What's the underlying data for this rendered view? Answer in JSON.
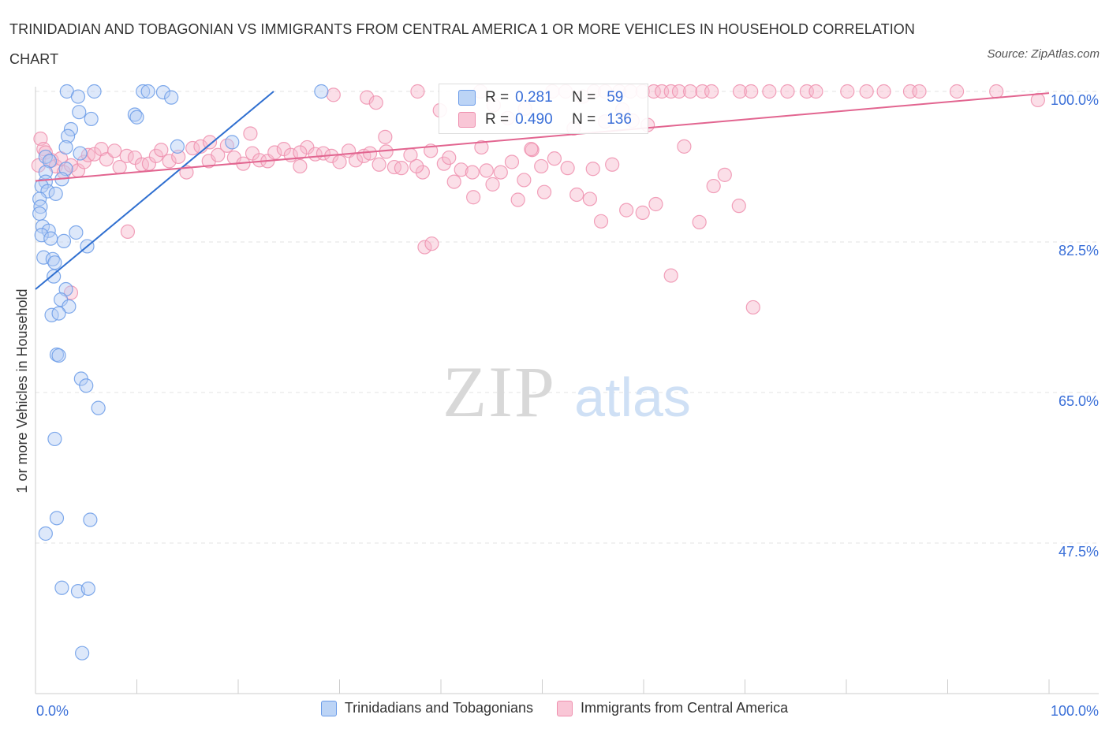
{
  "title": "TRINIDADIAN AND TOBAGONIAN VS IMMIGRANTS FROM CENTRAL AMERICA 1 OR MORE VEHICLES IN HOUSEHOLD CORRELATION CHART",
  "source": "Source: ZipAtlas.com",
  "watermark": {
    "zip": "ZIP",
    "atlas": "atlas"
  },
  "stats": [
    {
      "r_label": "R =",
      "r": "0.281",
      "n_label": "N =",
      "n": "59",
      "color": "#6a9be8"
    },
    {
      "r_label": "R =",
      "r": "0.490",
      "n_label": "N =",
      "n": "136",
      "color": "#ef8fae"
    }
  ],
  "legend": [
    {
      "label": "Trinidadians and Tobagonians",
      "color": "#6a9be8"
    },
    {
      "label": "Immigrants from Central America",
      "color": "#ef8fae"
    }
  ],
  "colors": {
    "blue": "#6a9be8",
    "blue_line": "#2f6fd0",
    "pink": "#ef8fae",
    "pink_line": "#e26590",
    "axis_label": "#3a6fd8"
  },
  "chart_data": {
    "type": "scatter",
    "xlabel": "",
    "ylabel": "1 or more Vehicles in Household",
    "xlim": [
      0,
      100
    ],
    "ylim": [
      30,
      100
    ],
    "x_tick_labels": [
      "0.0%",
      "100.0%"
    ],
    "y_ticks": [
      47.5,
      65.0,
      82.5,
      100.0
    ],
    "y_tick_labels": [
      "47.5%",
      "65.0%",
      "82.5%",
      "100.0%"
    ],
    "grid": true,
    "series": [
      {
        "name": "Trinidadians and Tobagonians",
        "color": "#6a9be8",
        "trend": {
          "x": [
            0.0,
            23.5
          ],
          "y": [
            77.0,
            100.0
          ]
        },
        "points": [
          [
            3.1,
            100
          ],
          [
            5.8,
            100
          ],
          [
            10.6,
            100
          ],
          [
            11.1,
            100
          ],
          [
            12.6,
            99.9
          ],
          [
            28.2,
            100
          ],
          [
            4.2,
            99.4
          ],
          [
            13.4,
            99.3
          ],
          [
            4.3,
            97.6
          ],
          [
            9.8,
            97.3
          ],
          [
            10.0,
            97.0
          ],
          [
            5.5,
            96.8
          ],
          [
            3.5,
            95.6
          ],
          [
            3.2,
            94.8
          ],
          [
            3.0,
            93.5
          ],
          [
            4.4,
            92.8
          ],
          [
            14.0,
            93.6
          ],
          [
            19.4,
            94.1
          ],
          [
            1.0,
            92.4
          ],
          [
            1.4,
            91.9
          ],
          [
            3.0,
            91.0
          ],
          [
            1.0,
            90.6
          ],
          [
            2.6,
            89.8
          ],
          [
            1.0,
            89.5
          ],
          [
            0.6,
            89.0
          ],
          [
            1.2,
            88.4
          ],
          [
            2.0,
            88.1
          ],
          [
            0.4,
            87.5
          ],
          [
            0.5,
            86.6
          ],
          [
            0.4,
            85.8
          ],
          [
            0.7,
            84.3
          ],
          [
            1.3,
            83.8
          ],
          [
            0.6,
            83.3
          ],
          [
            4.0,
            83.6
          ],
          [
            1.5,
            82.9
          ],
          [
            2.8,
            82.6
          ],
          [
            5.1,
            82.0
          ],
          [
            0.8,
            80.7
          ],
          [
            1.7,
            80.5
          ],
          [
            1.9,
            80.1
          ],
          [
            1.8,
            78.5
          ],
          [
            3.0,
            77.0
          ],
          [
            2.5,
            75.8
          ],
          [
            3.3,
            75.0
          ],
          [
            1.6,
            74.0
          ],
          [
            2.3,
            74.2
          ],
          [
            2.1,
            69.4
          ],
          [
            2.3,
            69.3
          ],
          [
            4.5,
            66.6
          ],
          [
            5.0,
            65.8
          ],
          [
            6.2,
            63.2
          ],
          [
            1.9,
            59.6
          ],
          [
            2.1,
            50.4
          ],
          [
            5.4,
            50.2
          ],
          [
            1.0,
            48.6
          ],
          [
            2.6,
            42.3
          ],
          [
            4.2,
            41.9
          ],
          [
            5.2,
            42.2
          ],
          [
            4.6,
            34.7
          ]
        ]
      },
      {
        "name": "Immigrants from Central America",
        "color": "#ef8fae",
        "trend": {
          "x": [
            0.0,
            100.0
          ],
          "y": [
            89.6,
            99.8
          ]
        },
        "points": [
          [
            0.3,
            91.4
          ],
          [
            0.5,
            94.5
          ],
          [
            0.8,
            93.3
          ],
          [
            1.0,
            92.9
          ],
          [
            1.6,
            92.0
          ],
          [
            2.0,
            91.3
          ],
          [
            2.5,
            92.2
          ],
          [
            2.8,
            90.6
          ],
          [
            3.5,
            91.4
          ],
          [
            4.2,
            90.8
          ],
          [
            4.8,
            91.8
          ],
          [
            5.2,
            92.6
          ],
          [
            5.8,
            92.7
          ],
          [
            6.5,
            93.3
          ],
          [
            7.0,
            92.1
          ],
          [
            7.8,
            93.1
          ],
          [
            8.3,
            91.2
          ],
          [
            9.0,
            92.5
          ],
          [
            9.8,
            92.3
          ],
          [
            10.5,
            91.5
          ],
          [
            11.2,
            91.6
          ],
          [
            11.9,
            92.5
          ],
          [
            12.4,
            93.2
          ],
          [
            13.2,
            91.9
          ],
          [
            14.1,
            92.4
          ],
          [
            14.9,
            90.6
          ],
          [
            15.5,
            93.4
          ],
          [
            16.3,
            93.6
          ],
          [
            17.1,
            91.9
          ],
          [
            18.0,
            92.6
          ],
          [
            18.9,
            93.7
          ],
          [
            19.6,
            92.3
          ],
          [
            20.5,
            91.6
          ],
          [
            21.4,
            92.8
          ],
          [
            22.1,
            92.0
          ],
          [
            22.9,
            91.9
          ],
          [
            23.6,
            92.9
          ],
          [
            24.5,
            93.3
          ],
          [
            25.2,
            92.6
          ],
          [
            26.1,
            91.3
          ],
          [
            26.8,
            93.5
          ],
          [
            27.6,
            92.7
          ],
          [
            28.4,
            92.8
          ],
          [
            29.2,
            92.5
          ],
          [
            30.0,
            91.8
          ],
          [
            30.9,
            93.1
          ],
          [
            31.6,
            92.0
          ],
          [
            32.4,
            92.5
          ],
          [
            33.0,
            92.8
          ],
          [
            33.9,
            91.5
          ],
          [
            34.6,
            93.0
          ],
          [
            35.4,
            91.2
          ],
          [
            36.1,
            91.1
          ],
          [
            37.0,
            92.6
          ],
          [
            38.2,
            90.6
          ],
          [
            39.0,
            93.1
          ],
          [
            40.3,
            91.6
          ],
          [
            41.3,
            89.5
          ],
          [
            42.0,
            90.9
          ],
          [
            43.1,
            90.6
          ],
          [
            44.0,
            93.5
          ],
          [
            45.1,
            89.2
          ],
          [
            45.9,
            90.6
          ],
          [
            47.0,
            91.8
          ],
          [
            48.2,
            89.7
          ],
          [
            49.0,
            93.2
          ],
          [
            50.2,
            88.3
          ],
          [
            51.2,
            92.2
          ],
          [
            52.5,
            91.1
          ],
          [
            53.4,
            88.0
          ],
          [
            54.7,
            87.5
          ],
          [
            55.8,
            84.9
          ],
          [
            56.9,
            91.5
          ],
          [
            58.3,
            86.2
          ],
          [
            59.9,
            85.9
          ],
          [
            61.2,
            86.9
          ],
          [
            62.7,
            78.6
          ],
          [
            64.0,
            93.6
          ],
          [
            65.5,
            84.8
          ],
          [
            66.9,
            89.0
          ],
          [
            68.0,
            90.3
          ],
          [
            69.4,
            86.7
          ],
          [
            70.8,
            74.9
          ],
          [
            17.2,
            94.1
          ],
          [
            9.1,
            83.7
          ],
          [
            3.5,
            76.6
          ],
          [
            37.6,
            91.3
          ],
          [
            38.4,
            81.9
          ],
          [
            39.1,
            82.3
          ],
          [
            40.8,
            92.3
          ],
          [
            43.2,
            87.7
          ],
          [
            44.5,
            90.8
          ],
          [
            47.6,
            87.4
          ],
          [
            48.9,
            93.3
          ],
          [
            49.9,
            91.3
          ],
          [
            53.1,
            95.7
          ],
          [
            55.0,
            91.0
          ],
          [
            56.2,
            96.5
          ],
          [
            58.9,
            96.6
          ],
          [
            60.4,
            96.1
          ],
          [
            57.9,
            97.9
          ],
          [
            46.6,
            96.9
          ],
          [
            45.2,
            98.4
          ],
          [
            43.9,
            100
          ],
          [
            48.3,
            98.0
          ],
          [
            51.0,
            100
          ],
          [
            52.3,
            100
          ],
          [
            54.0,
            99.4
          ],
          [
            55.1,
            100
          ],
          [
            56.2,
            100
          ],
          [
            57.6,
            100
          ],
          [
            58.7,
            100
          ],
          [
            59.9,
            100
          ],
          [
            61.0,
            100
          ],
          [
            61.8,
            100
          ],
          [
            62.7,
            100
          ],
          [
            63.5,
            100
          ],
          [
            64.6,
            100
          ],
          [
            65.8,
            100
          ],
          [
            66.7,
            100
          ],
          [
            69.5,
            100
          ],
          [
            70.6,
            100
          ],
          [
            72.4,
            100
          ],
          [
            74.2,
            100
          ],
          [
            76.1,
            100
          ],
          [
            77.0,
            100
          ],
          [
            80.1,
            100
          ],
          [
            82.0,
            100
          ],
          [
            83.7,
            100
          ],
          [
            86.3,
            100
          ],
          [
            87.2,
            100
          ],
          [
            90.9,
            100
          ],
          [
            94.8,
            100
          ],
          [
            98.9,
            99.0
          ],
          [
            37.7,
            100
          ],
          [
            29.4,
            99.6
          ],
          [
            32.7,
            99.3
          ],
          [
            33.6,
            98.7
          ],
          [
            21.2,
            95.1
          ],
          [
            26.1,
            92.9
          ],
          [
            34.5,
            94.7
          ],
          [
            39.9,
            97.8
          ]
        ]
      }
    ]
  }
}
